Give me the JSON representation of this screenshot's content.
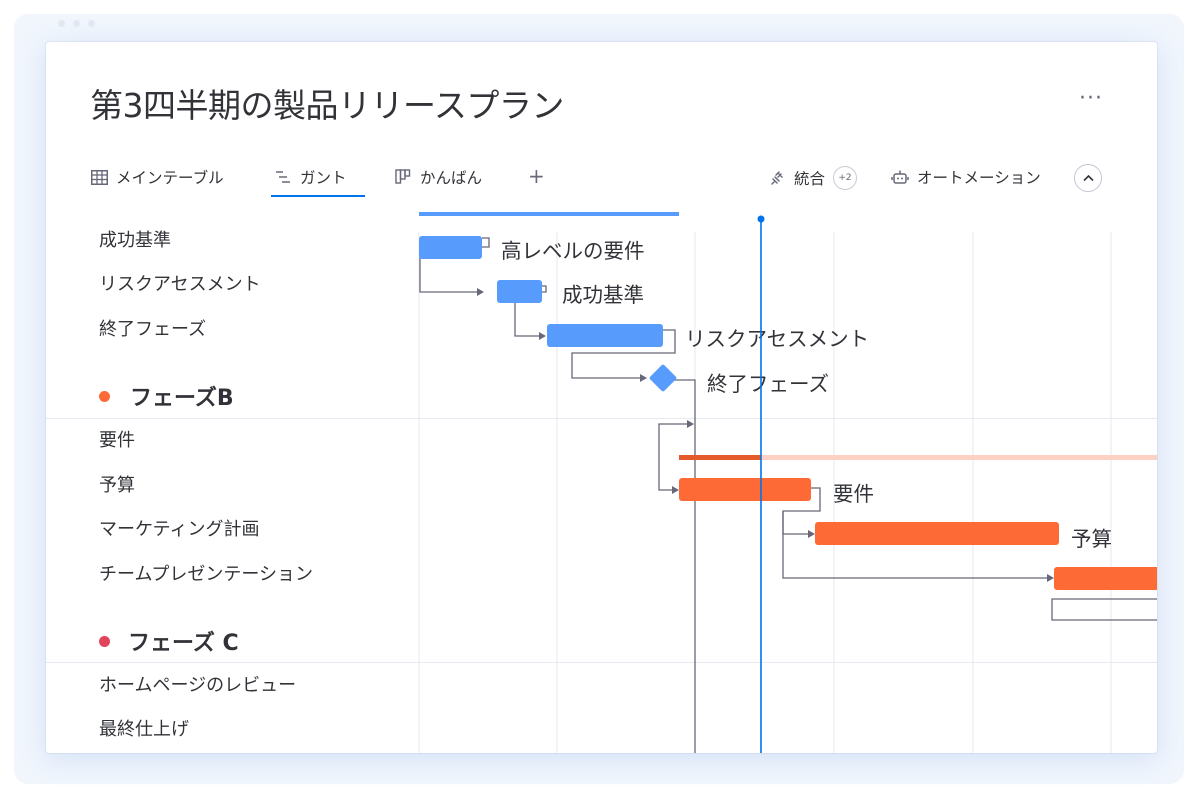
{
  "title": "第3四半期の製品リリースプラン",
  "more_label": "···",
  "tabs": [
    {
      "label": "メインテーブル",
      "icon": "table-icon"
    },
    {
      "label": "ガント",
      "icon": "gantt-icon"
    },
    {
      "label": "かんばん",
      "icon": "kanban-icon"
    }
  ],
  "add_tab_label": "+",
  "toolbar": {
    "integrate_label": "統合",
    "integrate_badge": "+2",
    "automation_label": "オートメーション",
    "collapse_icon": "chevron-up-icon"
  },
  "rows_a": [
    "成功基準",
    "リスクアセスメント",
    "終了フェーズ"
  ],
  "phase_b": {
    "name": "フェーズB",
    "color": "#fd6a36"
  },
  "rows_b": [
    "要件",
    "予算",
    "マーケティング計画",
    "チームプレゼンテーション"
  ],
  "phase_c": {
    "name": "フェーズ C",
    "color": "#e2445c"
  },
  "rows_c": [
    "ホームページのレビュー",
    "最終仕上げ"
  ],
  "bars": {
    "a1": "高レベルの要件",
    "a2": "成功基準",
    "a3": "リスクアセスメント",
    "a4": "終了フェーズ",
    "b1": "要件",
    "b2": "予算"
  },
  "colors": {
    "blue": "#579bfc",
    "orange": "#fd6a36",
    "today": "#0073ea"
  }
}
